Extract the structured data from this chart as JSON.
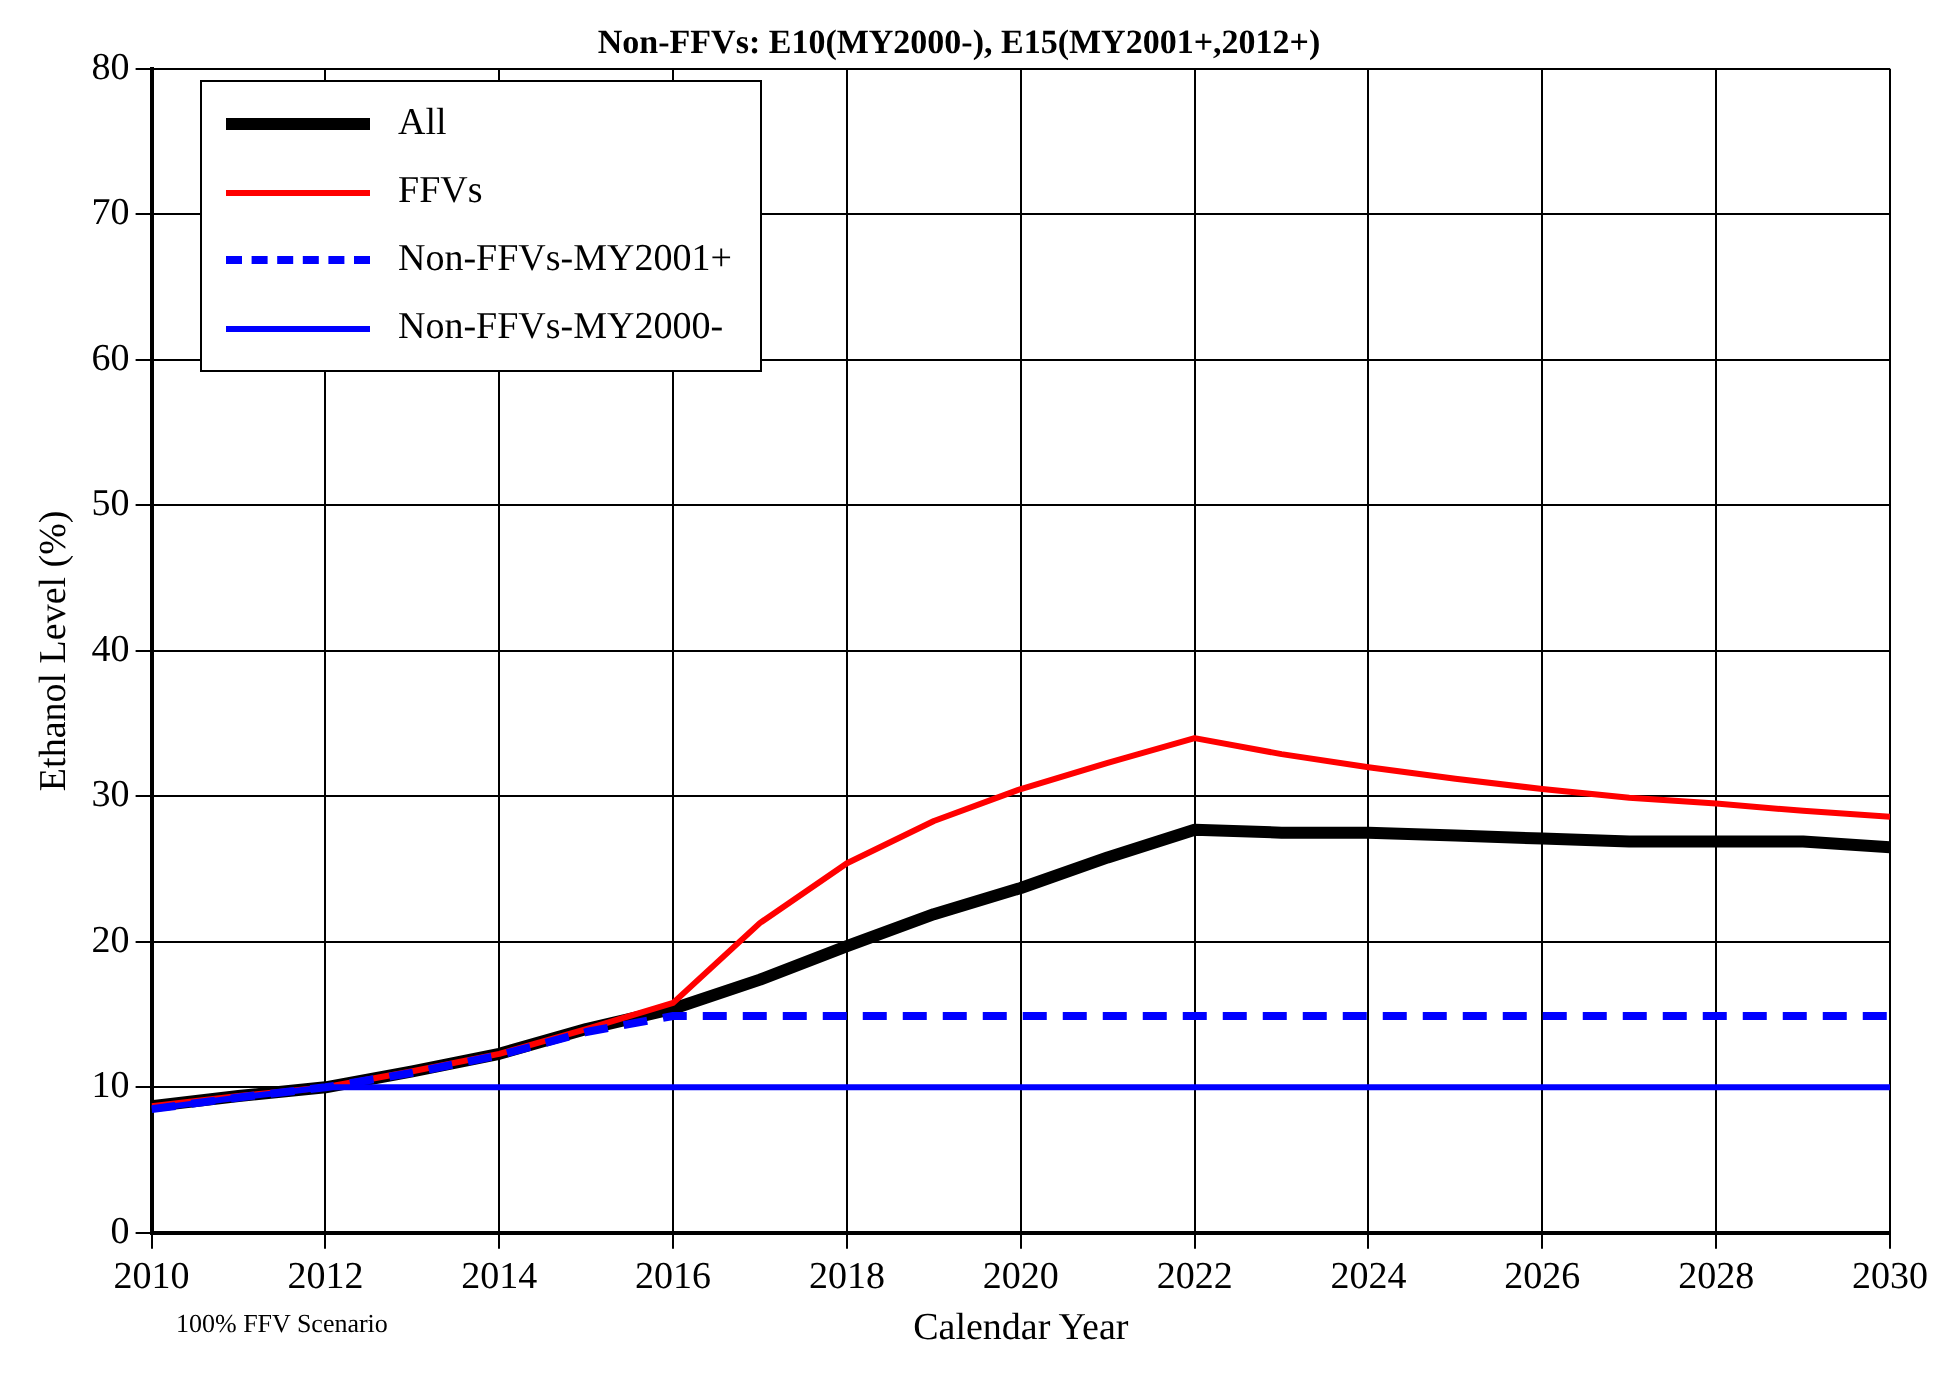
{
  "chart_data": {
    "type": "line",
    "title": "Non-FFVs: E10(MY2000-), E15(MY2001+,2012+)",
    "xlabel": "Calendar Year",
    "ylabel": "Ethanol Level (%)",
    "annotations": [
      "100% FFV Scenario"
    ],
    "x": [
      2010,
      2011,
      2012,
      2013,
      2014,
      2015,
      2016,
      2017,
      2018,
      2019,
      2020,
      2021,
      2022,
      2023,
      2024,
      2025,
      2026,
      2027,
      2028,
      2029,
      2030
    ],
    "series": [
      {
        "name": "All",
        "color": "#000000",
        "values": [
          8.7,
          9.4,
          10,
          11.1,
          12.3,
          14,
          15.4,
          17.4,
          19.7,
          21.9,
          23.7,
          25.8,
          27.7,
          27.5,
          27.5,
          27.3,
          27.1,
          26.9,
          26.9,
          26.9,
          26.5
        ]
      },
      {
        "name": "FFVs",
        "color": "#ff0000",
        "values": [
          8.7,
          9.4,
          10,
          11.1,
          12.3,
          14,
          15.8,
          21.3,
          25.4,
          28.3,
          30.5,
          32.3,
          34,
          32.9,
          32,
          31.2,
          30.5,
          29.9,
          29.5,
          29,
          28.6
        ]
      },
      {
        "name": "Non-FFVs-MY2001+",
        "color": "#0000ff",
        "line_style": "dashed",
        "values": [
          8.5,
          9.3,
          10,
          11,
          12.2,
          13.8,
          14.9,
          14.9,
          14.9,
          14.9,
          14.9,
          14.9,
          14.9,
          14.9,
          14.9,
          14.9,
          14.9,
          14.9,
          14.9,
          14.9,
          14.9
        ]
      },
      {
        "name": "Non-FFVs-MY2000-",
        "color": "#0000ff",
        "line_style": "solid",
        "values": [
          8.5,
          9.3,
          10,
          10,
          10,
          10,
          10,
          10,
          10,
          10,
          10,
          10,
          10,
          10,
          10,
          10,
          10,
          10,
          10,
          10,
          10
        ]
      }
    ],
    "xlim": [
      2010,
      2030
    ],
    "xticks": [
      2010,
      2012,
      2014,
      2016,
      2018,
      2020,
      2022,
      2024,
      2026,
      2028,
      2030
    ],
    "ylim": [
      0,
      80
    ],
    "yticks": [
      0,
      10,
      20,
      30,
      40,
      50,
      60,
      70,
      80
    ],
    "grid": true,
    "legend": "top left",
    "marker": "none"
  }
}
